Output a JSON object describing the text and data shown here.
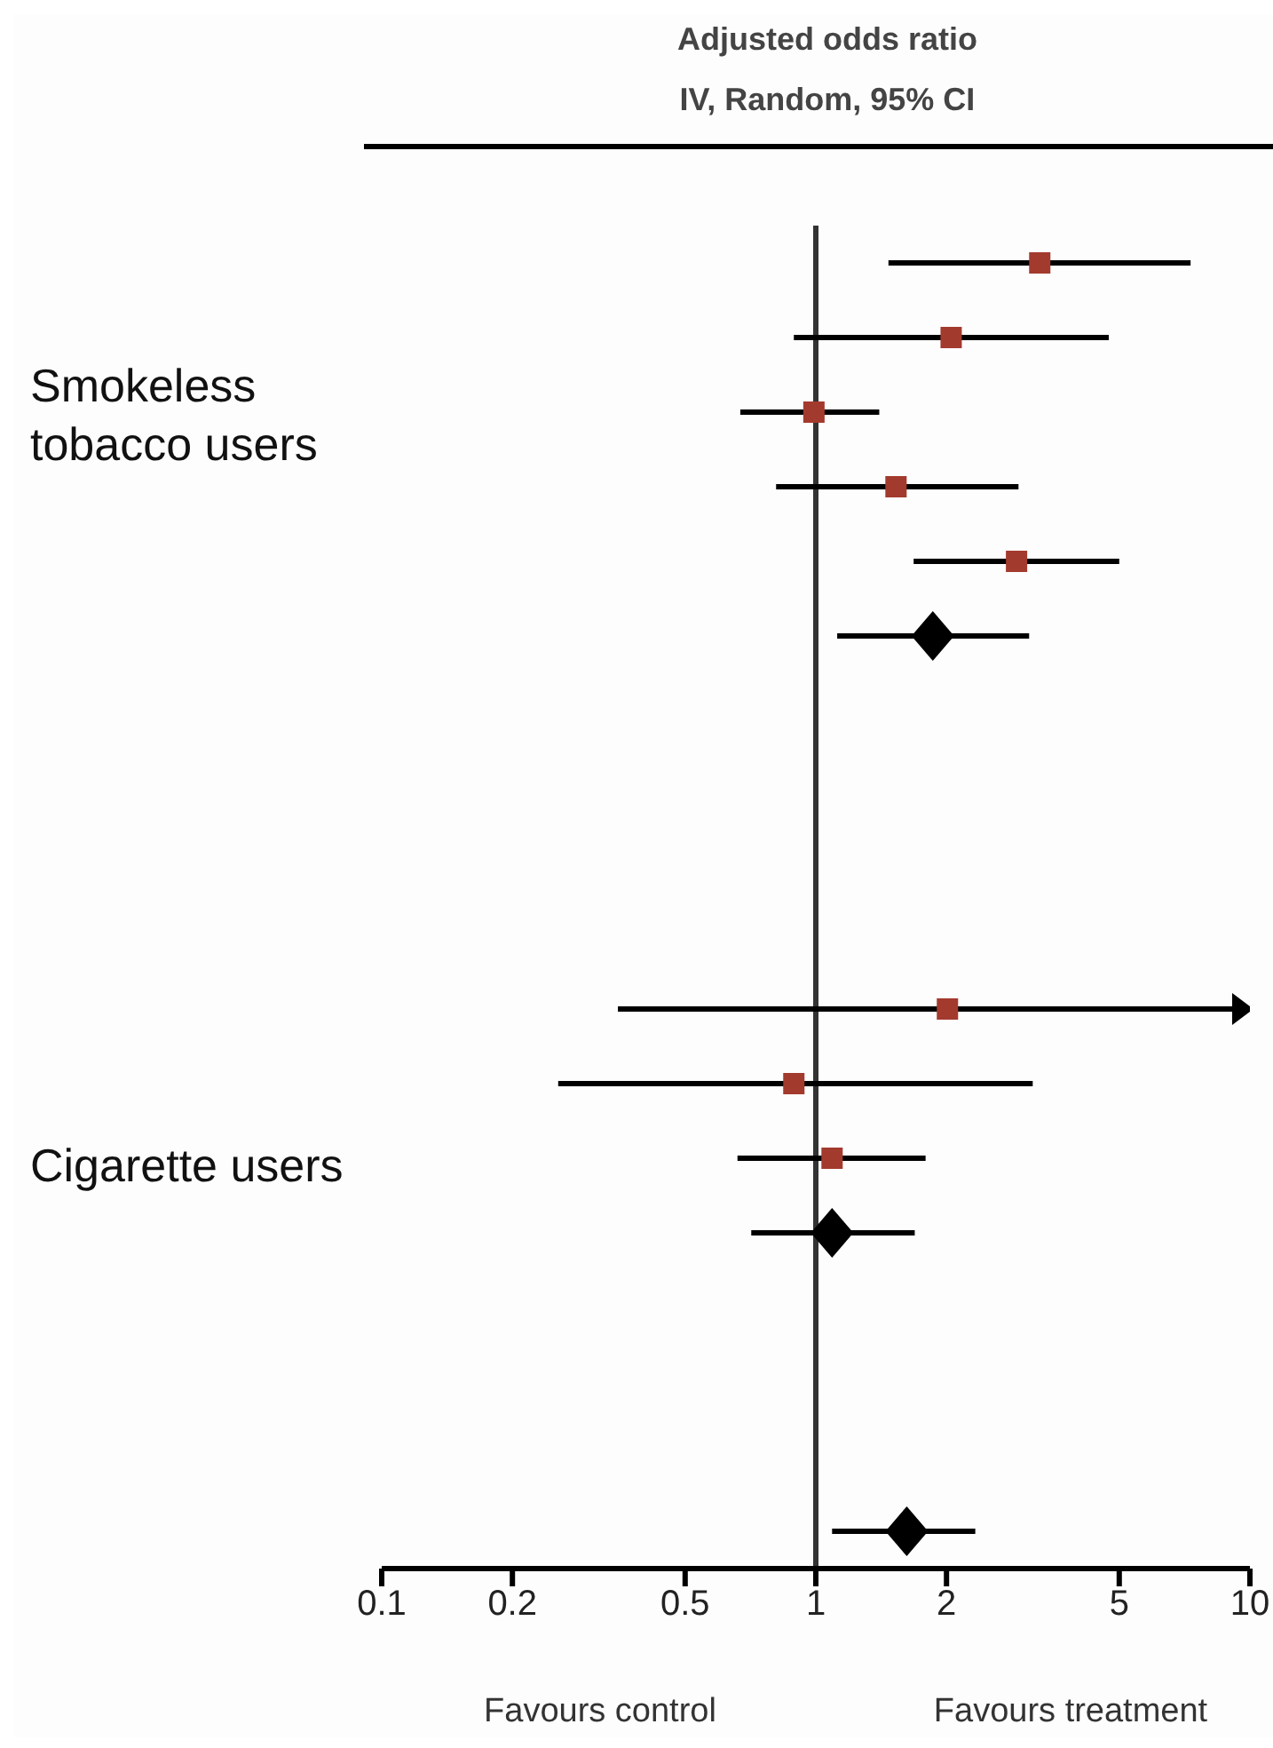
{
  "chart_data": {
    "type": "scatter",
    "orientation": "horizontal",
    "title": "Adjusted odds ratio",
    "subtitle": "IV, Random, 95% CI",
    "categories": [
      null,
      null,
      null,
      null,
      null,
      null,
      null,
      null,
      null,
      null,
      null,
      null,
      null,
      null,
      null,
      null,
      null,
      null
    ],
    "log": "x",
    "xlim": [
      0.1,
      10
    ],
    "xticks": [
      0.1,
      0.2,
      0.5,
      1,
      2,
      5,
      10
    ],
    "tick_labels": "x",
    "ref_lines": [
      {
        "axis": "x",
        "value": 1,
        "color": "#333333"
      }
    ],
    "series": [
      {
        "color": "#a33a2e",
        "marker": "square",
        "values": [
          3.28,
          2.05,
          0.99,
          1.53,
          2.9,
          null,
          null,
          null,
          null,
          null,
          2.01,
          0.89,
          1.09,
          null,
          null,
          null,
          null,
          null
        ],
        "errors": [
          [
            1.47,
            7.3
          ],
          [
            0.89,
            4.73
          ],
          [
            0.67,
            1.4
          ],
          [
            0.81,
            2.93
          ],
          [
            1.68,
            5.0
          ],
          null,
          null,
          null,
          null,
          null,
          [
            0.35,
            10
          ],
          [
            0.255,
            3.16
          ],
          [
            0.66,
            1.79
          ],
          null,
          null,
          null,
          null,
          null
        ]
      },
      {
        "color": "#000000",
        "marker": "diamond",
        "values": [
          null,
          null,
          null,
          null,
          null,
          1.86,
          null,
          null,
          null,
          null,
          null,
          null,
          null,
          1.09,
          null,
          null,
          null,
          1.62
        ],
        "errors": [
          null,
          null,
          null,
          null,
          null,
          [
            1.12,
            3.1
          ],
          null,
          null,
          null,
          null,
          null,
          null,
          null,
          [
            0.71,
            1.69
          ],
          null,
          null,
          null,
          [
            1.09,
            2.33
          ]
        ]
      }
    ],
    "annotations": [
      "Smokeless tobacco users",
      "Cigarette users",
      "Favours control",
      "Favours treatment"
    ]
  }
}
